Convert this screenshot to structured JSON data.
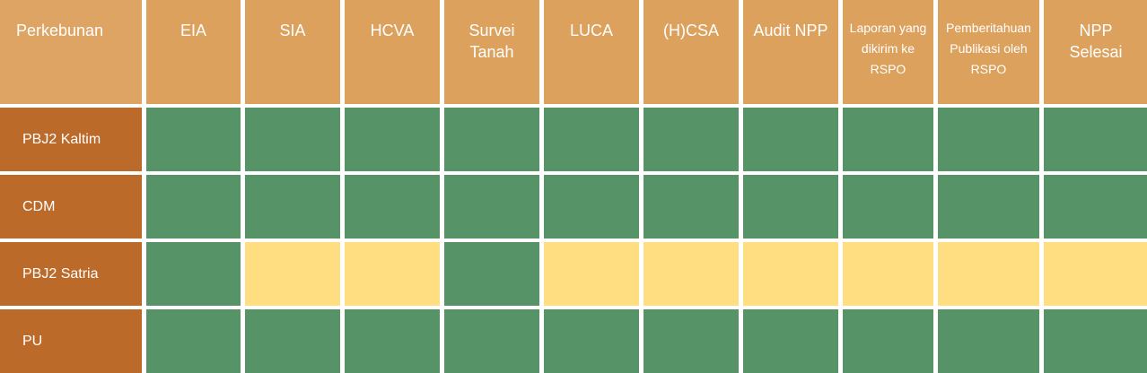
{
  "table": {
    "headers": [
      "Perkebunan",
      "EIA",
      "SIA",
      "HCVA",
      "Survei\nTanah",
      "LUCA",
      "(H)CSA",
      "Audit NPP",
      "Laporan yang\ndikirim ke\nRSPO",
      "Pemberitahuan\nPublikasi oleh\nRSPO",
      "NPP\nSelesai"
    ],
    "rows": [
      {
        "label": "PBJ2 Kaltim",
        "status": [
          "done",
          "done",
          "done",
          "done",
          "done",
          "done",
          "done",
          "done",
          "done",
          "done"
        ]
      },
      {
        "label": "CDM",
        "status": [
          "done",
          "done",
          "done",
          "done",
          "done",
          "done",
          "done",
          "done",
          "done",
          "done"
        ]
      },
      {
        "label": "PBJ2 Satria",
        "status": [
          "done",
          "pending",
          "pending",
          "done",
          "pending",
          "pending",
          "pending",
          "pending",
          "pending",
          "pending"
        ]
      },
      {
        "label": "PU",
        "status": [
          "done",
          "done",
          "done",
          "done",
          "done",
          "done",
          "done",
          "done",
          "done",
          "done"
        ]
      }
    ]
  },
  "colors": {
    "header": "#DDA15E",
    "row_label": "#BC6A2A",
    "done": "#569467",
    "pending": "#FFDE82"
  }
}
